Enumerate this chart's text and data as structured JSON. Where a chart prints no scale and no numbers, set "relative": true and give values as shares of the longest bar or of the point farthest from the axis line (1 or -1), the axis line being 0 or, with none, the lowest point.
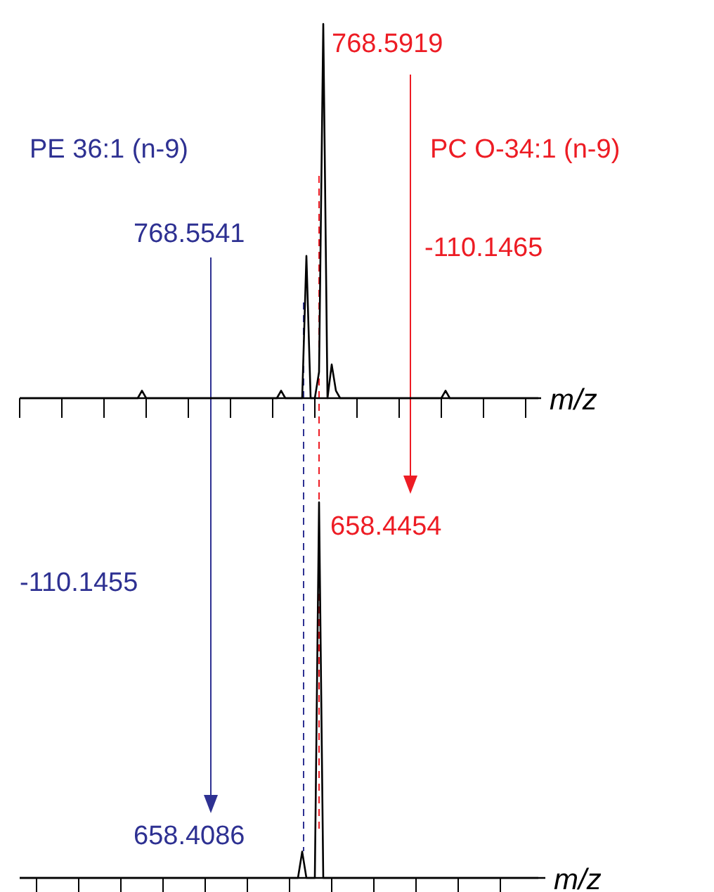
{
  "chart_data": [
    {
      "type": "line",
      "relative": true,
      "xlabel": "m/z",
      "categories": [
        null,
        null,
        null,
        null,
        null,
        null,
        null,
        null,
        null,
        null,
        null,
        null,
        null,
        null,
        null,
        null,
        null,
        null,
        null,
        null,
        null,
        null,
        null,
        null,
        null,
        null,
        null,
        null,
        null,
        null,
        null,
        null,
        null,
        null,
        null,
        null,
        null,
        null,
        null,
        null,
        null,
        null,
        null,
        null,
        null,
        null,
        null,
        null,
        null,
        null,
        null,
        null,
        null,
        null,
        null,
        null,
        null,
        null,
        null,
        null,
        null,
        null,
        null,
        null,
        null,
        null,
        null,
        null,
        null,
        null,
        null,
        null,
        null,
        null,
        null,
        null,
        null,
        null,
        null,
        null,
        null,
        null,
        null,
        null,
        null,
        null,
        null,
        null,
        null,
        null,
        null,
        null,
        null,
        null,
        null,
        null,
        null,
        null,
        null,
        null,
        null,
        null,
        null,
        null,
        null,
        null,
        null,
        null,
        null,
        null,
        null,
        null,
        null,
        null,
        null,
        null,
        null,
        null,
        null,
        null,
        null,
        null,
        null,
        null
      ],
      "series": [
        {
          "color": "#000000",
          "values": [
            0,
            0,
            0,
            0,
            0,
            0,
            0,
            0,
            0,
            0,
            0,
            0,
            0,
            0,
            0,
            0,
            0,
            0,
            0,
            0,
            0,
            0,
            0,
            0,
            0,
            0,
            0,
            0,
            0,
            0.02,
            0,
            0,
            0,
            0,
            0,
            0,
            0,
            0,
            0,
            0,
            0,
            0,
            0,
            0,
            0,
            0,
            0,
            0,
            0,
            0,
            0,
            0,
            0,
            0,
            0,
            0,
            0,
            0,
            0,
            0,
            0,
            0,
            0.02,
            0,
            0,
            0,
            0,
            0,
            0.38,
            0,
            0,
            0.07,
            1,
            0,
            0.09,
            0.02,
            0,
            0,
            0,
            0,
            0,
            0,
            0,
            0,
            0,
            0,
            0,
            0,
            0,
            0,
            0,
            0,
            0,
            0,
            0,
            0,
            0,
            0,
            0,
            0,
            0,
            0.02,
            0,
            0,
            0,
            0,
            0,
            0,
            0,
            0,
            0,
            0,
            0,
            0,
            0,
            0,
            0,
            0,
            0,
            0,
            0,
            0,
            0,
            0
          ]
        }
      ],
      "annotations": [
        "768.5919",
        "PE 36:1 (n-9)",
        "768.5541",
        "PC O-34:1 (n-9)",
        "-110.1465"
      ]
    },
    {
      "type": "line",
      "relative": true,
      "xlabel": "m/z",
      "categories": [
        null,
        null,
        null,
        null,
        null,
        null,
        null,
        null,
        null,
        null,
        null,
        null,
        null,
        null,
        null,
        null,
        null,
        null,
        null,
        null,
        null,
        null,
        null,
        null,
        null,
        null,
        null,
        null,
        null,
        null,
        null,
        null,
        null,
        null,
        null,
        null,
        null,
        null,
        null,
        null,
        null,
        null,
        null,
        null,
        null,
        null,
        null,
        null,
        null,
        null,
        null,
        null,
        null,
        null,
        null,
        null,
        null,
        null,
        null,
        null,
        null,
        null,
        null,
        null,
        null,
        null,
        null,
        null,
        null,
        null,
        null,
        null,
        null,
        null,
        null,
        null,
        null,
        null,
        null,
        null,
        null,
        null,
        null,
        null,
        null,
        null,
        null,
        null,
        null,
        null,
        null,
        null,
        null,
        null,
        null,
        null,
        null,
        null,
        null,
        null,
        null,
        null,
        null,
        null,
        null,
        null,
        null,
        null,
        null,
        null,
        null,
        null,
        null,
        null,
        null,
        null,
        null,
        null,
        null,
        null,
        null,
        null,
        null,
        null
      ],
      "series": [
        {
          "color": "#000000",
          "values": [
            0,
            0,
            0,
            0,
            0,
            0,
            0,
            0,
            0,
            0,
            0,
            0,
            0,
            0,
            0,
            0,
            0,
            0,
            0,
            0,
            0,
            0,
            0,
            0,
            0,
            0,
            0,
            0,
            0,
            0,
            0,
            0,
            0,
            0,
            0,
            0,
            0,
            0,
            0,
            0,
            0,
            0,
            0,
            0,
            0,
            0,
            0,
            0,
            0,
            0,
            0,
            0,
            0,
            0,
            0,
            0,
            0,
            0,
            0,
            0,
            0,
            0,
            0,
            0,
            0,
            0,
            0,
            0.07,
            0,
            0,
            0,
            1,
            0,
            0,
            0,
            0,
            0,
            0,
            0,
            0,
            0,
            0,
            0,
            0,
            0,
            0,
            0,
            0,
            0,
            0,
            0,
            0,
            0,
            0,
            0,
            0,
            0,
            0,
            0,
            0,
            0,
            0,
            0,
            0,
            0,
            0,
            0,
            0,
            0,
            0,
            0,
            0,
            0,
            0,
            0,
            0,
            0,
            0,
            0,
            0,
            0,
            0,
            0,
            0
          ]
        }
      ],
      "annotations": [
        "-110.1455",
        "658.4454",
        "658.4086"
      ]
    }
  ]
}
